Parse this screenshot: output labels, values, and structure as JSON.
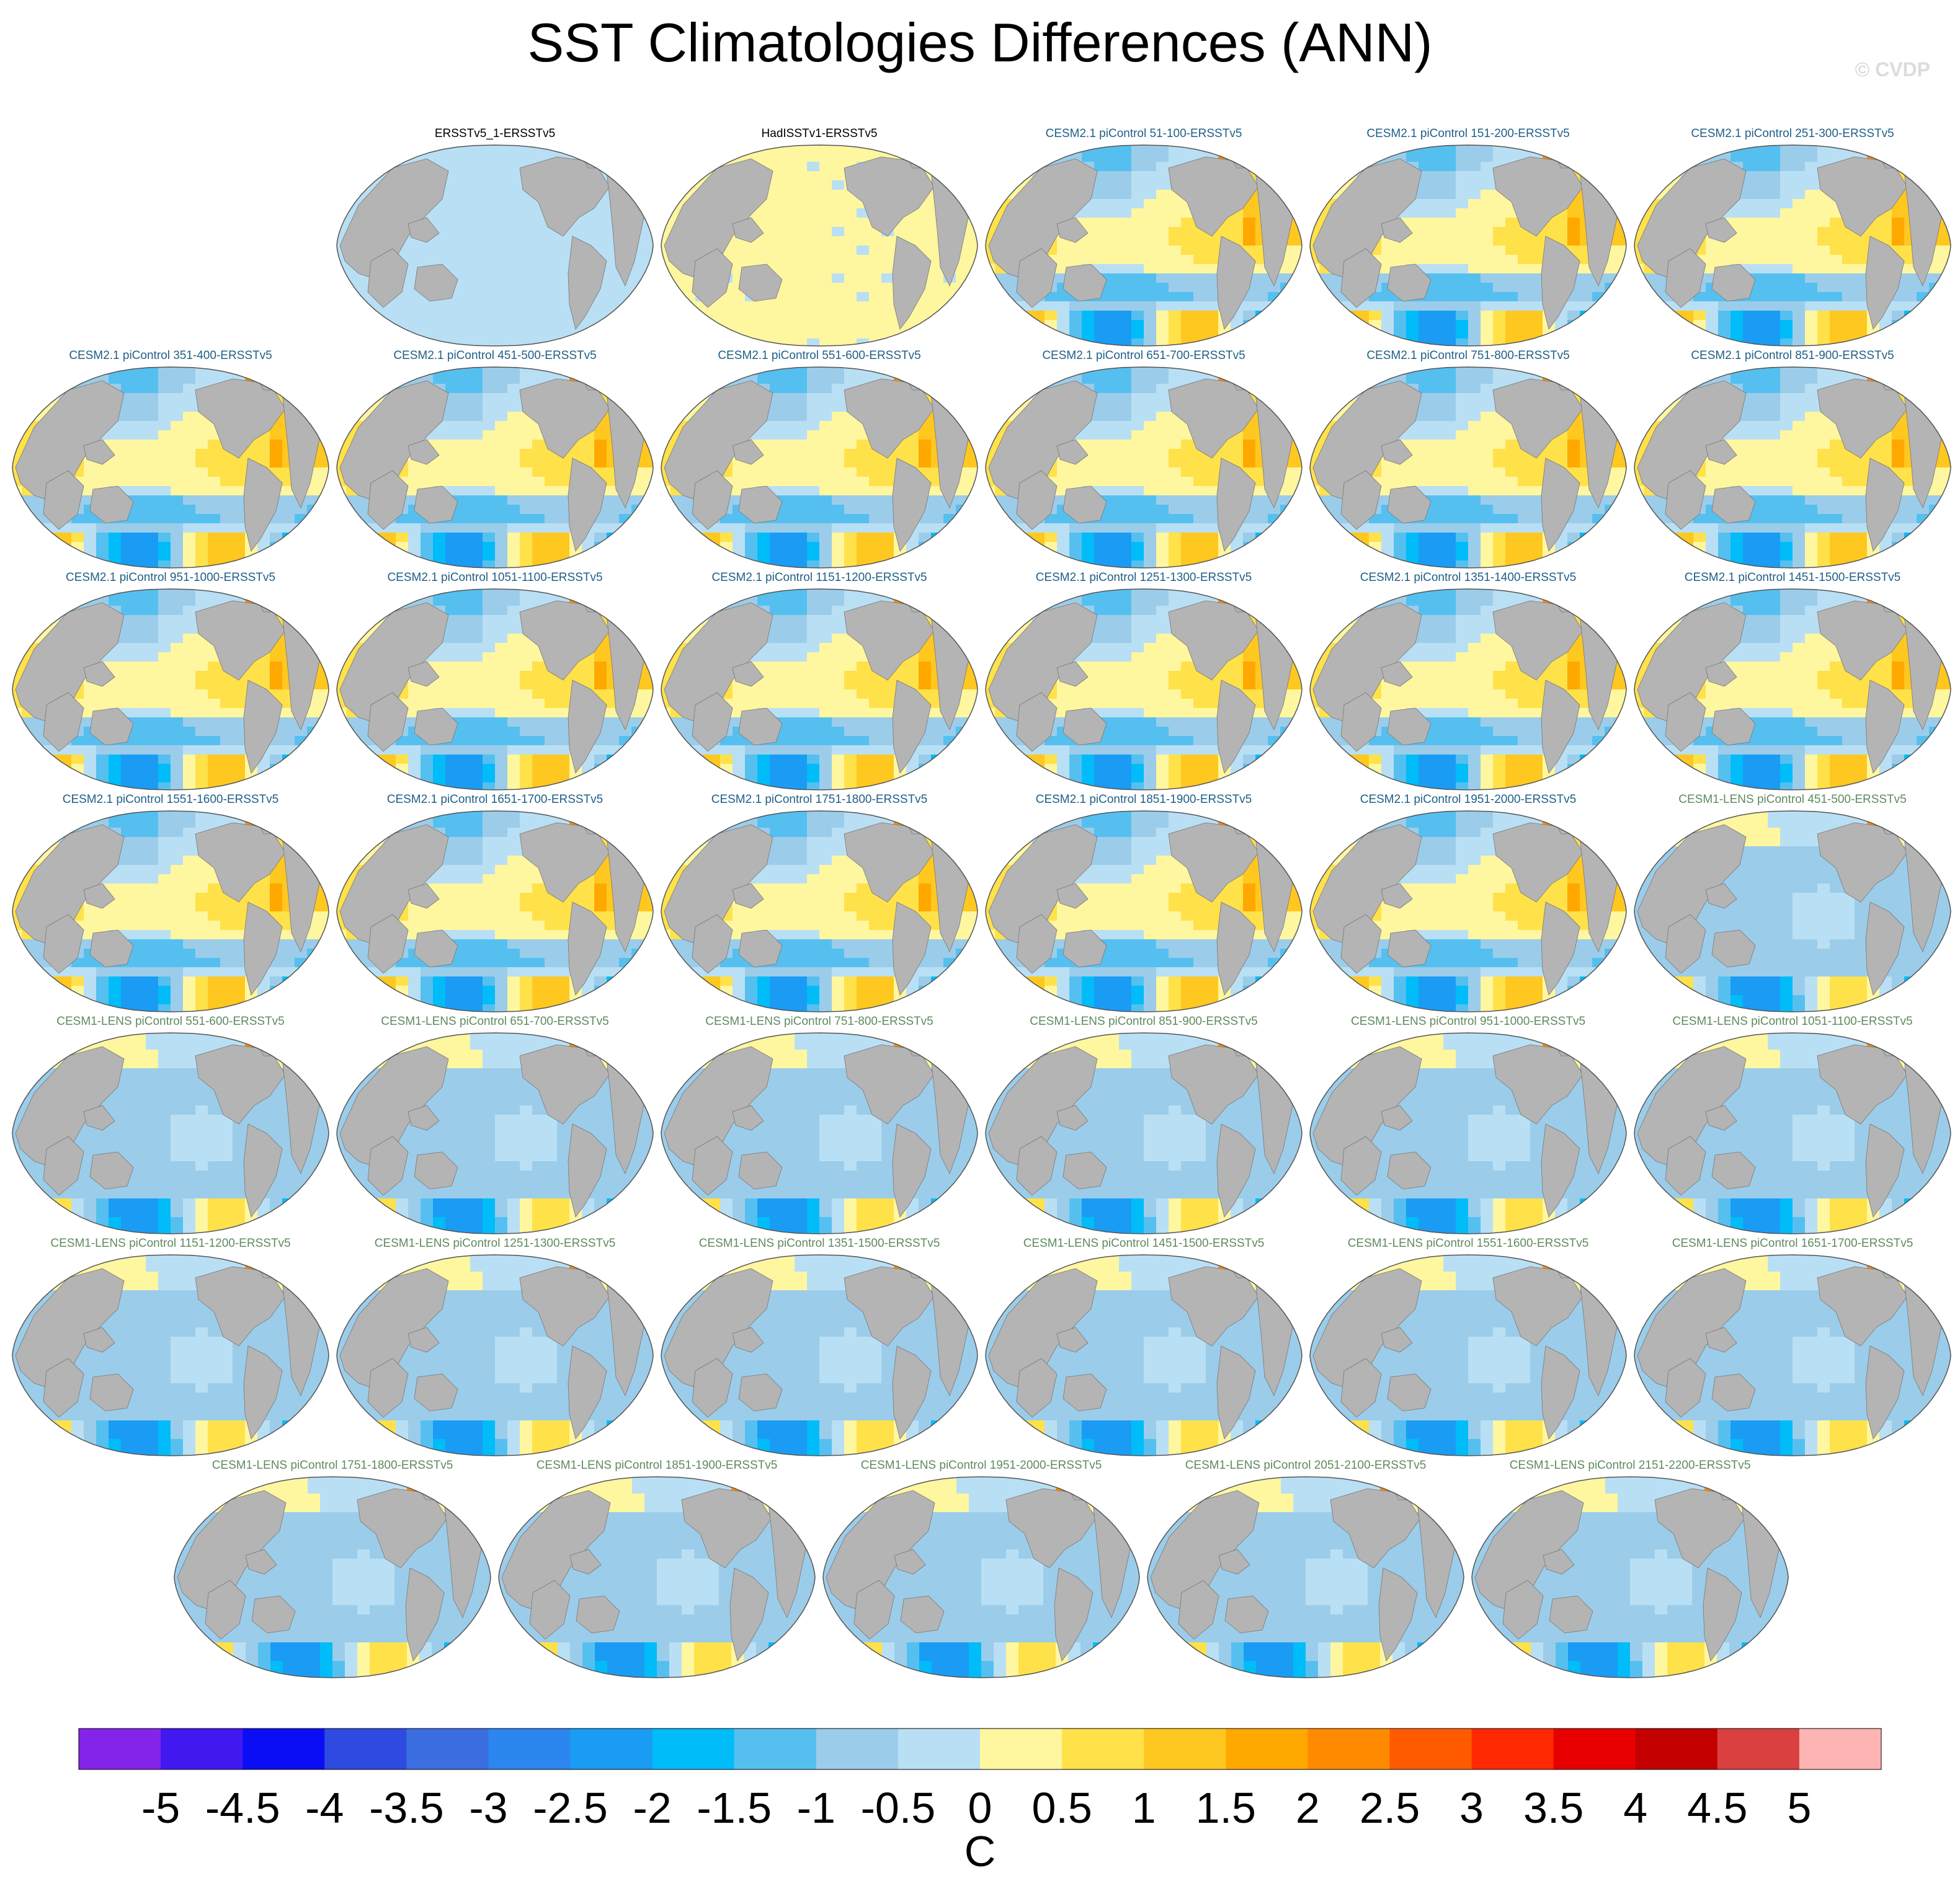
{
  "page": {
    "title": "SST Climatologies Differences (ANN)",
    "watermark": "© CVDP"
  },
  "colors": {
    "land": "#b4b4b4",
    "ocean_neutral": "#b9dff4",
    "title_obs": "#000000",
    "title_cesm2": "#1f5f86",
    "title_cesm1": "#5f8a5f"
  },
  "chart_data": {
    "type": "map-panels",
    "title": "SST Climatologies Differences (ANN)",
    "projection": "Robinson, Pacific-centered",
    "variable": "SST difference (model/obs minus ERSSTv5), annual mean",
    "panels": [
      {
        "label": "ERSSTv5_1-ERSSTv5",
        "group": "obs",
        "pattern": "flat-zero"
      },
      {
        "label": "HadISSTv1-ERSSTv5",
        "group": "obs",
        "pattern": "flat-pos"
      },
      {
        "label": "CESM2.1 piControl 51-100-ERSSTv5",
        "group": "cesm2",
        "pattern": "cesm2"
      },
      {
        "label": "CESM2.1 piControl 151-200-ERSSTv5",
        "group": "cesm2",
        "pattern": "cesm2"
      },
      {
        "label": "CESM2.1 piControl 251-300-ERSSTv5",
        "group": "cesm2",
        "pattern": "cesm2"
      },
      {
        "label": "CESM2.1 piControl 351-400-ERSSTv5",
        "group": "cesm2",
        "pattern": "cesm2"
      },
      {
        "label": "CESM2.1 piControl 451-500-ERSSTv5",
        "group": "cesm2",
        "pattern": "cesm2"
      },
      {
        "label": "CESM2.1 piControl 551-600-ERSSTv5",
        "group": "cesm2",
        "pattern": "cesm2"
      },
      {
        "label": "CESM2.1 piControl 651-700-ERSSTv5",
        "group": "cesm2",
        "pattern": "cesm2"
      },
      {
        "label": "CESM2.1 piControl 751-800-ERSSTv5",
        "group": "cesm2",
        "pattern": "cesm2"
      },
      {
        "label": "CESM2.1 piControl 851-900-ERSSTv5",
        "group": "cesm2",
        "pattern": "cesm2"
      },
      {
        "label": "CESM2.1 piControl 951-1000-ERSSTv5",
        "group": "cesm2",
        "pattern": "cesm2"
      },
      {
        "label": "CESM2.1 piControl 1051-1100-ERSSTv5",
        "group": "cesm2",
        "pattern": "cesm2"
      },
      {
        "label": "CESM2.1 piControl 1151-1200-ERSSTv5",
        "group": "cesm2",
        "pattern": "cesm2"
      },
      {
        "label": "CESM2.1 piControl 1251-1300-ERSSTv5",
        "group": "cesm2",
        "pattern": "cesm2"
      },
      {
        "label": "CESM2.1 piControl 1351-1400-ERSSTv5",
        "group": "cesm2",
        "pattern": "cesm2"
      },
      {
        "label": "CESM2.1 piControl 1451-1500-ERSSTv5",
        "group": "cesm2",
        "pattern": "cesm2"
      },
      {
        "label": "CESM2.1 piControl 1551-1600-ERSSTv5",
        "group": "cesm2",
        "pattern": "cesm2"
      },
      {
        "label": "CESM2.1 piControl 1651-1700-ERSSTv5",
        "group": "cesm2",
        "pattern": "cesm2"
      },
      {
        "label": "CESM2.1 piControl 1751-1800-ERSSTv5",
        "group": "cesm2",
        "pattern": "cesm2"
      },
      {
        "label": "CESM2.1 piControl 1851-1900-ERSSTv5",
        "group": "cesm2",
        "pattern": "cesm2"
      },
      {
        "label": "CESM2.1 piControl 1951-2000-ERSSTv5",
        "group": "cesm2",
        "pattern": "cesm2"
      },
      {
        "label": "CESM1-LENS piControl 451-500-ERSSTv5",
        "group": "cesm1",
        "pattern": "cesm1"
      },
      {
        "label": "CESM1-LENS piControl 551-600-ERSSTv5",
        "group": "cesm1",
        "pattern": "cesm1"
      },
      {
        "label": "CESM1-LENS piControl 651-700-ERSSTv5",
        "group": "cesm1",
        "pattern": "cesm1"
      },
      {
        "label": "CESM1-LENS piControl 751-800-ERSSTv5",
        "group": "cesm1",
        "pattern": "cesm1"
      },
      {
        "label": "CESM1-LENS piControl 851-900-ERSSTv5",
        "group": "cesm1",
        "pattern": "cesm1"
      },
      {
        "label": "CESM1-LENS piControl 951-1000-ERSSTv5",
        "group": "cesm1",
        "pattern": "cesm1"
      },
      {
        "label": "CESM1-LENS piControl 1051-1100-ERSSTv5",
        "group": "cesm1",
        "pattern": "cesm1"
      },
      {
        "label": "CESM1-LENS piControl 1151-1200-ERSSTv5",
        "group": "cesm1",
        "pattern": "cesm1"
      },
      {
        "label": "CESM1-LENS piControl 1251-1300-ERSSTv5",
        "group": "cesm1",
        "pattern": "cesm1"
      },
      {
        "label": "CESM1-LENS piControl 1351-1500-ERSSTv5",
        "group": "cesm1",
        "pattern": "cesm1"
      },
      {
        "label": "CESM1-LENS piControl 1451-1500-ERSSTv5",
        "group": "cesm1",
        "pattern": "cesm1"
      },
      {
        "label": "CESM1-LENS piControl 1551-1600-ERSSTv5",
        "group": "cesm1",
        "pattern": "cesm1"
      },
      {
        "label": "CESM1-LENS piControl 1651-1700-ERSSTv5",
        "group": "cesm1",
        "pattern": "cesm1"
      },
      {
        "label": "CESM1-LENS piControl 1751-1800-ERSSTv5",
        "group": "cesm1",
        "pattern": "cesm1"
      },
      {
        "label": "CESM1-LENS piControl 1851-1900-ERSSTv5",
        "group": "cesm1",
        "pattern": "cesm1"
      },
      {
        "label": "CESM1-LENS piControl 1951-2000-ERSSTv5",
        "group": "cesm1",
        "pattern": "cesm1"
      },
      {
        "label": "CESM1-LENS piControl 2051-2100-ERSSTv5",
        "group": "cesm1",
        "pattern": "cesm1"
      },
      {
        "label": "CESM1-LENS piControl 2151-2200-ERSSTv5",
        "group": "cesm1",
        "pattern": "cesm1"
      }
    ],
    "colorbar": {
      "units": "C",
      "levels": [
        -5,
        -4.5,
        -4,
        -3.5,
        -3,
        -2.5,
        -2,
        -1.5,
        -1,
        -0.5,
        0,
        0.5,
        1,
        1.5,
        2,
        2.5,
        3,
        3.5,
        4,
        4.5,
        5
      ],
      "tick_labels": [
        "-5",
        "-4.5",
        "-4",
        "-3.5",
        "-3",
        "-2.5",
        "-2",
        "-1.5",
        "-1",
        "-0.5",
        "0",
        "0.5",
        "1",
        "1.5",
        "2",
        "2.5",
        "3",
        "3.5",
        "4",
        "4.5",
        "5"
      ],
      "colors": [
        "#8424ea",
        "#4218f0",
        "#0b0ef4",
        "#2f4ae0",
        "#3b6ee0",
        "#2b86ef",
        "#1a9cf4",
        "#00bcf8",
        "#55c0f0",
        "#9bcdea",
        "#b9dff4",
        "#fff6a0",
        "#ffe14a",
        "#ffc820",
        "#ffa800",
        "#ff8a00",
        "#ff5a00",
        "#ff2800",
        "#e80000",
        "#c40000",
        "#da4040",
        "#ffb4b4"
      ]
    }
  }
}
